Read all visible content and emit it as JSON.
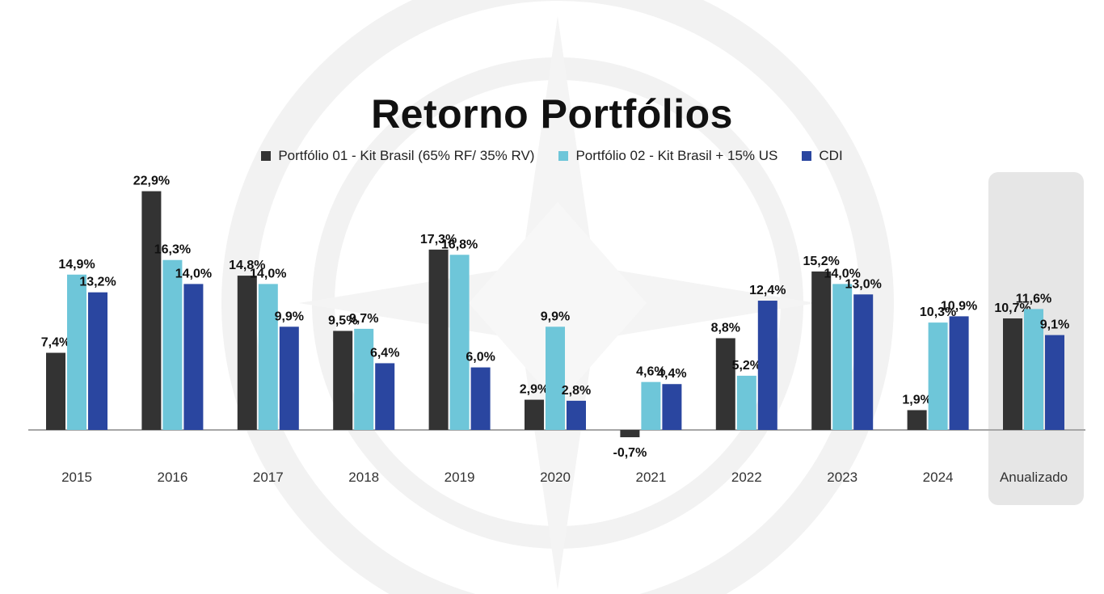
{
  "chart_data": {
    "type": "bar",
    "title": "Retorno Portfólios",
    "categories": [
      "2015",
      "2016",
      "2017",
      "2018",
      "2019",
      "2020",
      "2021",
      "2022",
      "2023",
      "2024",
      "Anualizado"
    ],
    "series": [
      {
        "name": "Portfólio 01 - Kit Brasil (65% RF/ 35% RV)",
        "color": "#333333",
        "values": [
          7.4,
          22.9,
          14.8,
          9.5,
          17.3,
          2.9,
          -0.7,
          8.8,
          15.2,
          1.9,
          10.7
        ],
        "labels": [
          "7,4%",
          "22,9%",
          "14,8%",
          "9,5%",
          "17,3%",
          "2,9%",
          "-0,7%",
          "8,8%",
          "15,2%",
          "1,9%",
          "10,7%"
        ]
      },
      {
        "name": "Portfólio 02 - Kit Brasil + 15% US",
        "color": "#6ec6d9",
        "values": [
          14.9,
          16.3,
          14.0,
          9.7,
          16.8,
          9.9,
          4.6,
          5.2,
          14.0,
          10.3,
          11.6
        ],
        "labels": [
          "14,9%",
          "16,3%",
          "14,0%",
          "9,7%",
          "16,8%",
          "9,9%",
          "4,6%",
          "5,2%",
          "14,0%",
          "10,3%",
          "11,6%"
        ]
      },
      {
        "name": "CDI",
        "color": "#2a46a0",
        "values": [
          13.2,
          14.0,
          9.9,
          6.4,
          6.0,
          2.8,
          4.4,
          12.4,
          13.0,
          10.9,
          9.1
        ],
        "labels": [
          "13,2%",
          "14,0%",
          "9,9%",
          "6,4%",
          "6,0%",
          "2,8%",
          "4,4%",
          "12,4%",
          "13,0%",
          "10,9%",
          "9,1%"
        ]
      }
    ],
    "highlighted_category": "Anualizado",
    "legend_position": "top",
    "grid": false,
    "xlabel": "",
    "ylabel": ""
  }
}
